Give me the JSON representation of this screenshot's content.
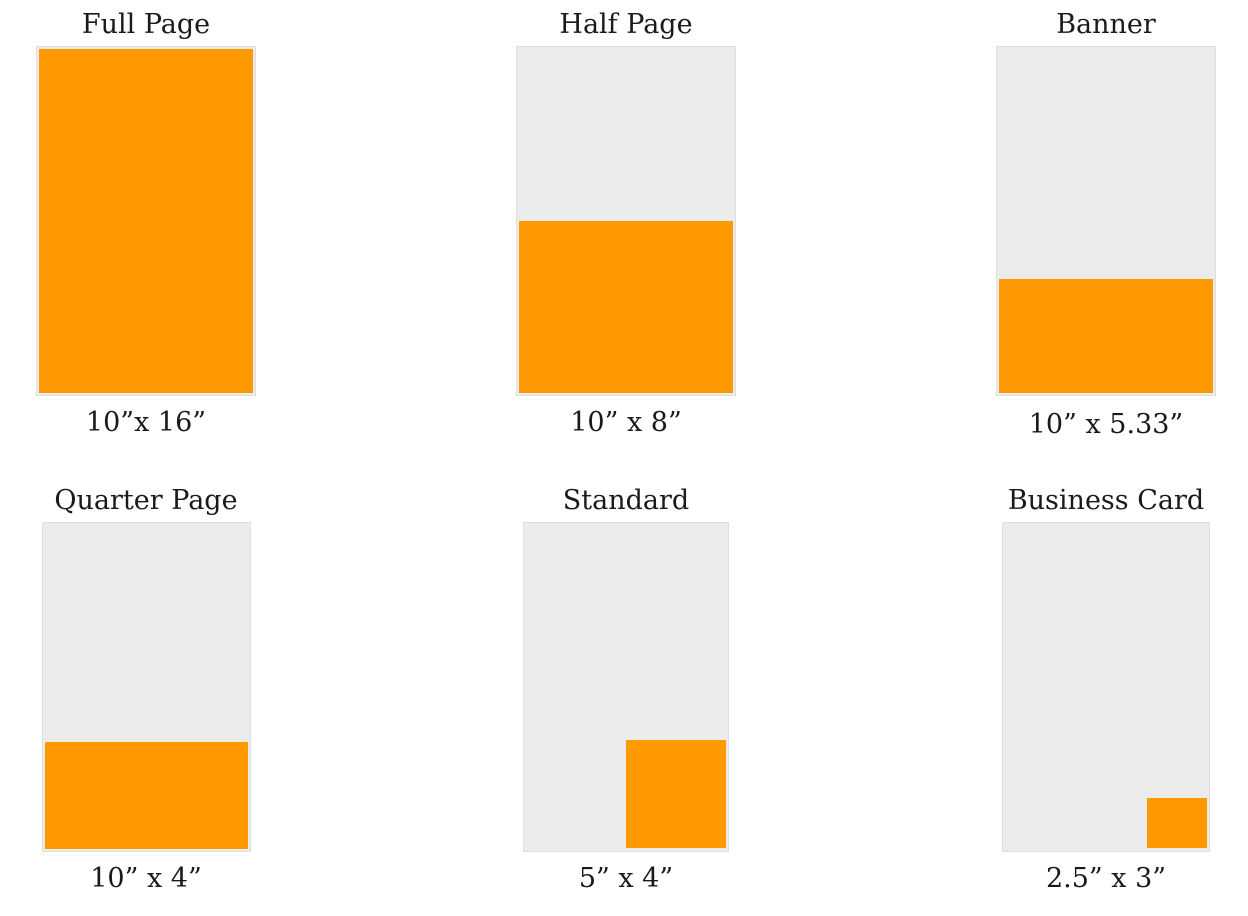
{
  "ad_sizes": [
    {
      "title": "Full Page",
      "size": "10”x 16”",
      "fill_color": "#ff9900",
      "page_color": "#ececec"
    },
    {
      "title": "Half Page",
      "size": "10” x 8”",
      "fill_color": "#ff9900",
      "page_color": "#ececec"
    },
    {
      "title": "Banner",
      "size": "10” x 5.33”",
      "fill_color": "#ff9900",
      "page_color": "#ececec"
    },
    {
      "title": "Quarter Page",
      "size": "10” x 4”",
      "fill_color": "#ff9900",
      "page_color": "#ececec"
    },
    {
      "title": "Standard",
      "size": "5” x 4”",
      "fill_color": "#ff9900",
      "page_color": "#ececec"
    },
    {
      "title": "Business Card",
      "size": "2.5” x 3”",
      "fill_color": "#ff9900",
      "page_color": "#ececec"
    }
  ]
}
